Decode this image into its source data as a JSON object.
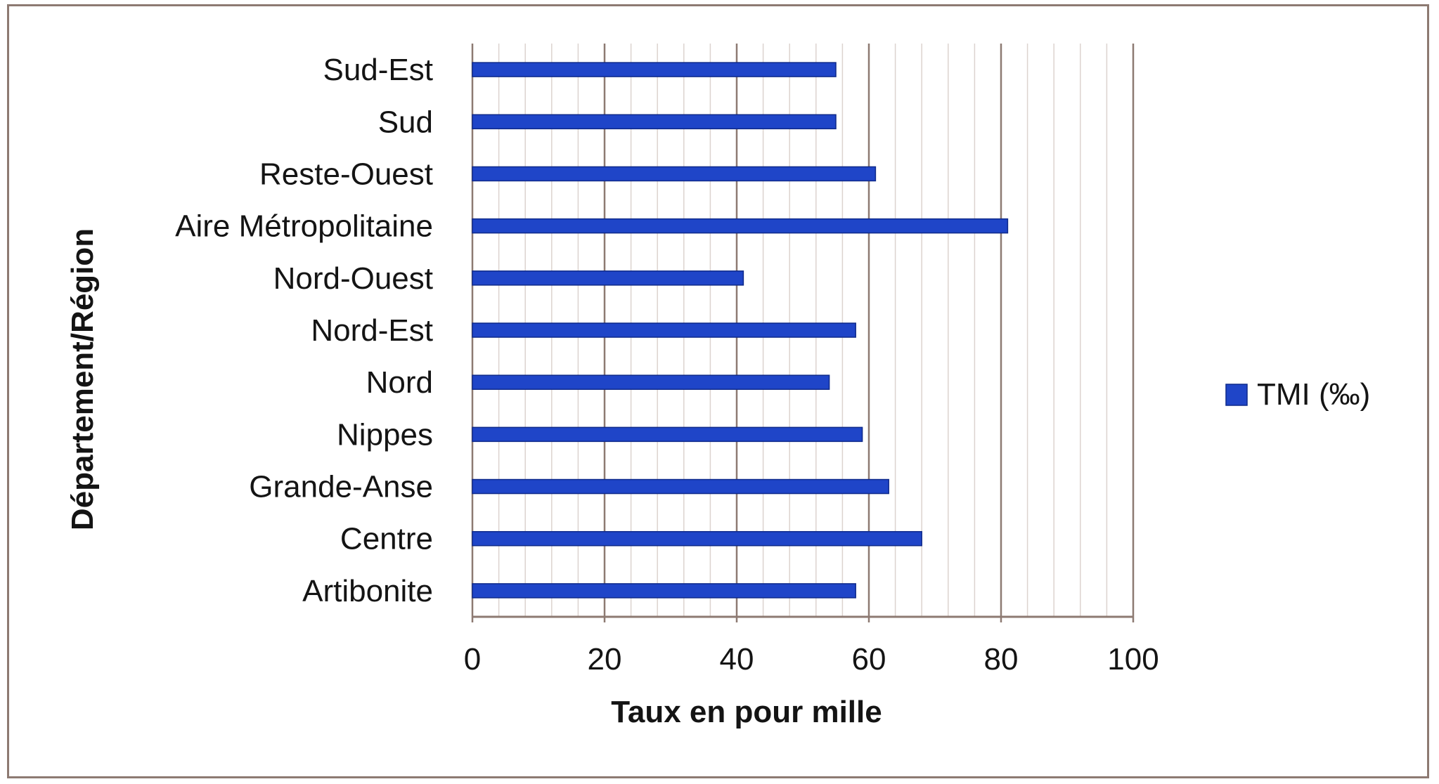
{
  "chart_data": {
    "type": "bar",
    "orientation": "horizontal",
    "categories": [
      "Sud-Est",
      "Sud",
      "Reste-Ouest",
      "Aire Métropolitaine",
      "Nord-Ouest",
      "Nord-Est",
      "Nord",
      "Nippes",
      "Grande-Anse",
      "Centre",
      "Artibonite"
    ],
    "series": [
      {
        "name": "TMI (‰)",
        "values": [
          55,
          55,
          61,
          81,
          41,
          58,
          54,
          59,
          63,
          68,
          58
        ],
        "color": "#1f45c8"
      }
    ],
    "xlabel": "Taux en pour mille",
    "ylabel": "Département/Région",
    "xlim": [
      0,
      100
    ],
    "xticks": [
      "0",
      "20",
      "40",
      "60",
      "80",
      "100"
    ],
    "grid": true,
    "legend_position": "right"
  }
}
